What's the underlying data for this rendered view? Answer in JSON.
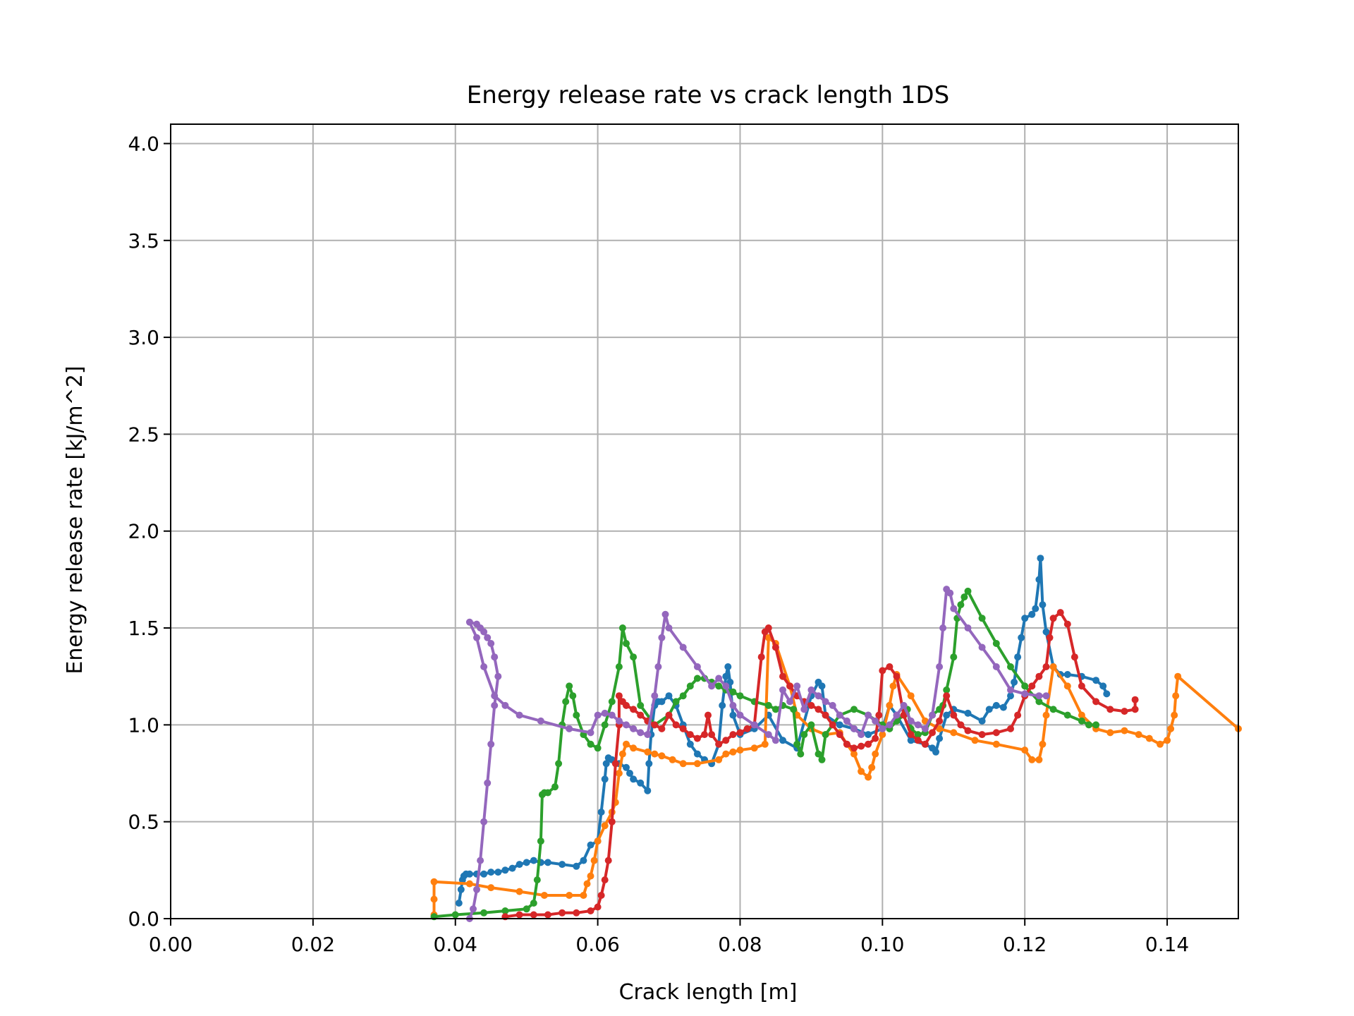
{
  "chart_data": {
    "type": "line",
    "title": "Energy release rate vs crack length 1DS",
    "xlabel": "Crack length [m]",
    "ylabel": "Energy release rate [kJ/m^2]",
    "xlim": [
      0.0,
      0.15
    ],
    "ylim": [
      0.0,
      4.1
    ],
    "xticks": [
      "0.00",
      "0.02",
      "0.04",
      "0.06",
      "0.08",
      "0.10",
      "0.12",
      "0.14"
    ],
    "yticks": [
      "0.0",
      "0.5",
      "1.0",
      "1.5",
      "2.0",
      "2.5",
      "3.0",
      "3.5",
      "4.0"
    ],
    "grid": true,
    "legend": "none",
    "markers": true,
    "series": [
      {
        "color": "#1f77b4",
        "x": [
          0.0405,
          0.0408,
          0.041,
          0.0412,
          0.0415,
          0.042,
          0.043,
          0.044,
          0.045,
          0.046,
          0.047,
          0.048,
          0.049,
          0.05,
          0.051,
          0.052,
          0.053,
          0.055,
          0.057,
          0.058,
          0.059,
          0.06,
          0.0605,
          0.061,
          0.0612,
          0.0615,
          0.062,
          0.063,
          0.064,
          0.0645,
          0.065,
          0.066,
          0.067,
          0.0672,
          0.0675,
          0.068,
          0.0685,
          0.069,
          0.07,
          0.071,
          0.072,
          0.073,
          0.074,
          0.075,
          0.076,
          0.077,
          0.0775,
          0.078,
          0.0783,
          0.0786,
          0.079,
          0.08,
          0.082,
          0.084,
          0.086,
          0.088,
          0.09,
          0.091,
          0.0915,
          0.092,
          0.094,
          0.096,
          0.098,
          0.1,
          0.101,
          0.102,
          0.104,
          0.106,
          0.107,
          0.1075,
          0.108,
          0.109,
          0.11,
          0.112,
          0.114,
          0.115,
          0.116,
          0.117,
          0.118,
          0.1185,
          0.119,
          0.1195,
          0.12,
          0.121,
          0.1215,
          0.122,
          0.1222,
          0.1225,
          0.123,
          0.124,
          0.125,
          0.126,
          0.128,
          0.13,
          0.131,
          0.1315
        ],
        "y": [
          0.08,
          0.15,
          0.2,
          0.22,
          0.23,
          0.23,
          0.23,
          0.23,
          0.24,
          0.24,
          0.25,
          0.26,
          0.28,
          0.29,
          0.3,
          0.29,
          0.29,
          0.28,
          0.27,
          0.3,
          0.38,
          0.4,
          0.55,
          0.72,
          0.8,
          0.83,
          0.82,
          0.8,
          0.78,
          0.75,
          0.72,
          0.7,
          0.66,
          0.8,
          0.95,
          1.1,
          1.12,
          1.12,
          1.15,
          1.1,
          1.0,
          0.9,
          0.85,
          0.82,
          0.8,
          0.9,
          1.1,
          1.25,
          1.3,
          1.22,
          1.05,
          0.95,
          0.98,
          1.05,
          0.92,
          0.88,
          1.15,
          1.22,
          1.2,
          1.05,
          1.0,
          0.98,
          0.95,
          0.98,
          1.1,
          1.05,
          0.92,
          0.9,
          0.88,
          0.86,
          0.93,
          1.05,
          1.08,
          1.06,
          1.02,
          1.08,
          1.1,
          1.09,
          1.15,
          1.22,
          1.35,
          1.45,
          1.55,
          1.57,
          1.6,
          1.75,
          1.86,
          1.62,
          1.48,
          1.3,
          1.26,
          1.26,
          1.25,
          1.23,
          1.2,
          1.16
        ]
      },
      {
        "color": "#ff7f0e",
        "x": [
          0.037,
          0.037,
          0.037,
          0.042,
          0.045,
          0.049,
          0.0525,
          0.056,
          0.058,
          0.0585,
          0.059,
          0.0595,
          0.06,
          0.061,
          0.062,
          0.0625,
          0.063,
          0.0635,
          0.064,
          0.065,
          0.067,
          0.068,
          0.069,
          0.0705,
          0.072,
          0.074,
          0.077,
          0.078,
          0.079,
          0.08,
          0.082,
          0.0835,
          0.084,
          0.085,
          0.087,
          0.088,
          0.09,
          0.092,
          0.094,
          0.095,
          0.096,
          0.097,
          0.098,
          0.0985,
          0.099,
          0.1,
          0.101,
          0.1015,
          0.102,
          0.104,
          0.106,
          0.108,
          0.11,
          0.113,
          0.116,
          0.12,
          0.121,
          0.122,
          0.1225,
          0.123,
          0.124,
          0.126,
          0.128,
          0.13,
          0.132,
          0.134,
          0.136,
          0.1375,
          0.139,
          0.14,
          0.1405,
          0.141,
          0.1412,
          0.1415,
          0.15
        ],
        "y": [
          0.02,
          0.1,
          0.19,
          0.18,
          0.16,
          0.14,
          0.12,
          0.12,
          0.12,
          0.18,
          0.22,
          0.3,
          0.4,
          0.48,
          0.55,
          0.6,
          0.75,
          0.85,
          0.9,
          0.88,
          0.86,
          0.85,
          0.84,
          0.82,
          0.8,
          0.8,
          0.82,
          0.85,
          0.86,
          0.87,
          0.88,
          0.9,
          1.45,
          1.42,
          1.2,
          1.05,
          0.98,
          0.95,
          0.96,
          0.9,
          0.85,
          0.76,
          0.73,
          0.78,
          0.85,
          0.95,
          1.1,
          1.2,
          1.26,
          1.15,
          1.02,
          0.98,
          0.96,
          0.92,
          0.9,
          0.87,
          0.82,
          0.82,
          0.9,
          1.05,
          1.3,
          1.2,
          1.05,
          0.98,
          0.96,
          0.97,
          0.95,
          0.93,
          0.9,
          0.92,
          0.98,
          1.05,
          1.15,
          1.25,
          0.98
        ]
      },
      {
        "color": "#2ca02c",
        "x": [
          0.037,
          0.04,
          0.044,
          0.047,
          0.05,
          0.051,
          0.0515,
          0.052,
          0.0522,
          0.0525,
          0.053,
          0.054,
          0.0545,
          0.055,
          0.0555,
          0.056,
          0.0565,
          0.057,
          0.058,
          0.059,
          0.06,
          0.061,
          0.062,
          0.063,
          0.0635,
          0.064,
          0.065,
          0.066,
          0.068,
          0.07,
          0.071,
          0.072,
          0.073,
          0.074,
          0.075,
          0.076,
          0.077,
          0.078,
          0.079,
          0.08,
          0.082,
          0.084,
          0.085,
          0.086,
          0.0875,
          0.088,
          0.0885,
          0.089,
          0.09,
          0.091,
          0.0915,
          0.092,
          0.094,
          0.096,
          0.098,
          0.1,
          0.101,
          0.102,
          0.103,
          0.1035,
          0.104,
          0.105,
          0.106,
          0.107,
          0.108,
          0.1085,
          0.109,
          0.11,
          0.1105,
          0.111,
          0.1115,
          0.112,
          0.114,
          0.116,
          0.118,
          0.12,
          0.122,
          0.124,
          0.126,
          0.128,
          0.129,
          0.13
        ],
        "y": [
          0.01,
          0.02,
          0.03,
          0.04,
          0.05,
          0.08,
          0.2,
          0.4,
          0.64,
          0.65,
          0.65,
          0.68,
          0.8,
          1.0,
          1.12,
          1.2,
          1.15,
          1.05,
          0.95,
          0.9,
          0.88,
          1.0,
          1.12,
          1.3,
          1.5,
          1.42,
          1.35,
          1.1,
          1.0,
          1.05,
          1.12,
          1.15,
          1.2,
          1.24,
          1.24,
          1.22,
          1.2,
          1.18,
          1.17,
          1.15,
          1.12,
          1.1,
          1.08,
          1.1,
          1.08,
          0.9,
          0.85,
          0.95,
          1.0,
          0.85,
          0.82,
          0.95,
          1.05,
          1.08,
          1.05,
          1.0,
          0.98,
          1.02,
          1.05,
          1.08,
          0.98,
          0.95,
          0.96,
          1.05,
          1.08,
          1.1,
          1.18,
          1.35,
          1.55,
          1.62,
          1.66,
          1.69,
          1.55,
          1.42,
          1.3,
          1.2,
          1.12,
          1.08,
          1.05,
          1.02,
          1.0,
          1.0
        ]
      },
      {
        "color": "#d62728",
        "x": [
          0.047,
          0.049,
          0.051,
          0.053,
          0.055,
          0.057,
          0.059,
          0.06,
          0.0605,
          0.061,
          0.0615,
          0.062,
          0.0625,
          0.063,
          0.063,
          0.0635,
          0.064,
          0.065,
          0.066,
          0.067,
          0.068,
          0.069,
          0.07,
          0.071,
          0.072,
          0.073,
          0.074,
          0.075,
          0.0755,
          0.076,
          0.077,
          0.078,
          0.079,
          0.08,
          0.081,
          0.082,
          0.083,
          0.0835,
          0.084,
          0.085,
          0.086,
          0.087,
          0.088,
          0.089,
          0.09,
          0.091,
          0.092,
          0.093,
          0.094,
          0.095,
          0.096,
          0.097,
          0.098,
          0.099,
          0.0995,
          0.1,
          0.101,
          0.102,
          0.103,
          0.104,
          0.105,
          0.106,
          0.107,
          0.108,
          0.109,
          0.11,
          0.111,
          0.112,
          0.114,
          0.116,
          0.118,
          0.119,
          0.12,
          0.121,
          0.122,
          0.123,
          0.1235,
          0.124,
          0.125,
          0.126,
          0.127,
          0.128,
          0.13,
          0.132,
          0.134,
          0.1355,
          0.1355
        ],
        "y": [
          0.01,
          0.02,
          0.02,
          0.02,
          0.03,
          0.03,
          0.04,
          0.06,
          0.12,
          0.2,
          0.3,
          0.5,
          0.8,
          1.0,
          1.15,
          1.12,
          1.1,
          1.08,
          1.05,
          1.02,
          1.0,
          0.98,
          1.05,
          1.0,
          0.98,
          0.95,
          0.93,
          0.95,
          1.05,
          0.95,
          0.9,
          0.92,
          0.95,
          0.96,
          0.98,
          1.0,
          1.35,
          1.48,
          1.5,
          1.4,
          1.25,
          1.2,
          1.15,
          1.12,
          1.1,
          1.08,
          1.05,
          1.0,
          0.95,
          0.9,
          0.88,
          0.89,
          0.9,
          0.93,
          1.05,
          1.28,
          1.3,
          1.25,
          1.05,
          0.95,
          0.92,
          0.9,
          0.96,
          1.02,
          1.15,
          1.05,
          1.0,
          0.97,
          0.95,
          0.96,
          0.98,
          1.05,
          1.15,
          1.2,
          1.25,
          1.3,
          1.45,
          1.55,
          1.58,
          1.52,
          1.35,
          1.2,
          1.12,
          1.08,
          1.07,
          1.08,
          1.13
        ]
      },
      {
        "color": "#9467bd",
        "x": [
          0.042,
          0.0425,
          0.043,
          0.0435,
          0.044,
          0.0445,
          0.045,
          0.0455,
          0.046,
          0.0455,
          0.045,
          0.0445,
          0.044,
          0.0435,
          0.043,
          0.042,
          0.043,
          0.044,
          0.0455,
          0.047,
          0.049,
          0.052,
          0.056,
          0.059,
          0.06,
          0.061,
          0.062,
          0.063,
          0.064,
          0.065,
          0.066,
          0.067,
          0.068,
          0.0685,
          0.069,
          0.0695,
          0.07,
          0.072,
          0.074,
          0.076,
          0.077,
          0.078,
          0.079,
          0.08,
          0.082,
          0.084,
          0.085,
          0.086,
          0.087,
          0.088,
          0.089,
          0.09,
          0.091,
          0.092,
          0.093,
          0.094,
          0.095,
          0.096,
          0.097,
          0.098,
          0.099,
          0.1,
          0.101,
          0.102,
          0.103,
          0.104,
          0.105,
          0.106,
          0.107,
          0.108,
          0.1085,
          0.109,
          0.1095,
          0.11,
          0.112,
          0.114,
          0.116,
          0.118,
          0.12,
          0.122,
          0.123
        ],
        "y": [
          0.0,
          0.05,
          0.15,
          0.3,
          0.5,
          0.7,
          0.9,
          1.1,
          1.25,
          1.35,
          1.42,
          1.45,
          1.48,
          1.5,
          1.52,
          1.53,
          1.45,
          1.3,
          1.15,
          1.1,
          1.05,
          1.02,
          0.98,
          0.96,
          1.05,
          1.06,
          1.05,
          1.02,
          1.0,
          0.98,
          0.96,
          0.95,
          1.15,
          1.3,
          1.45,
          1.57,
          1.5,
          1.4,
          1.3,
          1.2,
          1.24,
          1.2,
          1.1,
          1.05,
          1.0,
          0.95,
          0.92,
          1.18,
          1.12,
          1.2,
          1.08,
          1.18,
          1.15,
          1.12,
          1.1,
          1.05,
          1.02,
          0.98,
          0.95,
          1.05,
          1.02,
          0.98,
          1.0,
          1.05,
          1.1,
          1.02,
          1.0,
          0.98,
          1.05,
          1.3,
          1.5,
          1.7,
          1.68,
          1.6,
          1.5,
          1.4,
          1.3,
          1.18,
          1.16,
          1.15,
          1.15
        ]
      }
    ]
  }
}
